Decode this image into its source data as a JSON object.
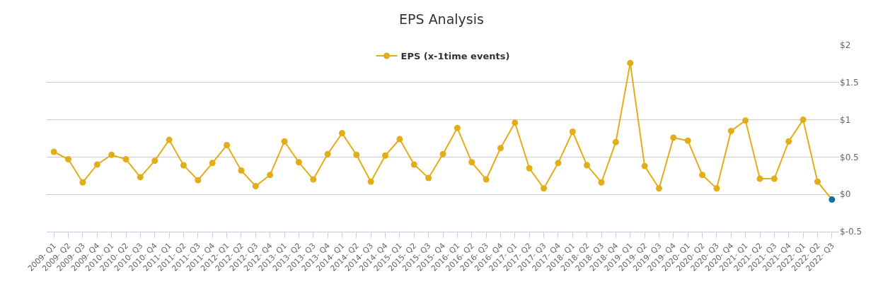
{
  "chart_data": {
    "type": "line",
    "title": "EPS Analysis",
    "categories": [
      "2009- Q1",
      "2009- Q2",
      "2009- Q3",
      "2009- Q4",
      "2010- Q1",
      "2010- Q2",
      "2010- Q3",
      "2010- Q4",
      "2011- Q1",
      "2011- Q2",
      "2011- Q3",
      "2011- Q4",
      "2012- Q1",
      "2012- Q2",
      "2012- Q3",
      "2012- Q4",
      "2013- Q1",
      "2013- Q2",
      "2013- Q3",
      "2013- Q4",
      "2014- Q1",
      "2014- Q2",
      "2014- Q3",
      "2014- Q4",
      "2015- Q1",
      "2015- Q2",
      "2015- Q3",
      "2015- Q4",
      "2016- Q1",
      "2016- Q2",
      "2016- Q3",
      "2016- Q4",
      "2017- Q1",
      "2017- Q2",
      "2017- Q3",
      "2017- Q4",
      "2018- Q1",
      "2018- Q2",
      "2018- Q3",
      "2018- Q4",
      "2019- Q1",
      "2019- Q2",
      "2019- Q3",
      "2019- Q4",
      "2020- Q1",
      "2020- Q2",
      "2020- Q3",
      "2020- Q4",
      "2021- Q1",
      "2021- Q2",
      "2021- Q3",
      "2021- Q4",
      "2022- Q1",
      "2022- Q2",
      "2022- Q3"
    ],
    "series": [
      {
        "name": "EPS (x-1time events)",
        "color": "#e3ad17",
        "colors": [
          "#e3ad17",
          "#e3ad17",
          "#e3ad17",
          "#e3ad17",
          "#e3ad17",
          "#e3ad17",
          "#e3ad17",
          "#e3ad17",
          "#e3ad17",
          "#e3ad17",
          "#e3ad17",
          "#e3ad17",
          "#e3ad17",
          "#e3ad17",
          "#e3ad17",
          "#e3ad17",
          "#e3ad17",
          "#e3ad17",
          "#e3ad17",
          "#e3ad17",
          "#e3ad17",
          "#e3ad17",
          "#e3ad17",
          "#e3ad17",
          "#e3ad17",
          "#e3ad17",
          "#e3ad17",
          "#e3ad17",
          "#e3ad17",
          "#e3ad17",
          "#e3ad17",
          "#e3ad17",
          "#e3ad17",
          "#e3ad17",
          "#e3ad17",
          "#e3ad17",
          "#e3ad17",
          "#e3ad17",
          "#e3ad17",
          "#e3ad17",
          "#e3ad17",
          "#e3ad17",
          "#e3ad17",
          "#e3ad17",
          "#e3ad17",
          "#e3ad17",
          "#e3ad17",
          "#e3ad17",
          "#e3ad17",
          "#e3ad17",
          "#e3ad17",
          "#e3ad17",
          "#e3ad17",
          "#e3ad17",
          "#0f6fa8"
        ],
        "values": [
          0.57,
          0.47,
          0.16,
          0.4,
          0.53,
          0.47,
          0.23,
          0.45,
          0.73,
          0.39,
          0.19,
          0.42,
          0.66,
          0.32,
          0.11,
          0.26,
          0.71,
          0.43,
          0.2,
          0.54,
          0.82,
          0.53,
          0.17,
          0.52,
          0.74,
          0.4,
          0.22,
          0.54,
          0.89,
          0.43,
          0.2,
          0.62,
          0.96,
          0.35,
          0.08,
          0.42,
          0.84,
          0.39,
          0.16,
          0.7,
          1.76,
          0.38,
          0.08,
          0.76,
          0.72,
          0.26,
          0.08,
          0.85,
          0.99,
          0.21,
          0.21,
          0.71,
          1.0,
          0.17,
          -0.07
        ]
      }
    ],
    "ylim": [
      -0.5,
      2
    ],
    "yticks": [
      {
        "value": -0.5,
        "label": "$-0.5"
      },
      {
        "value": 0,
        "label": "$0"
      },
      {
        "value": 0.5,
        "label": "$0.5"
      },
      {
        "value": 1,
        "label": "$1"
      },
      {
        "value": 1.5,
        "label": "$1.5"
      },
      {
        "value": 2,
        "label": "$2"
      }
    ],
    "grid": "y",
    "legend": "top",
    "marker": "circle",
    "line_style": "solid"
  }
}
